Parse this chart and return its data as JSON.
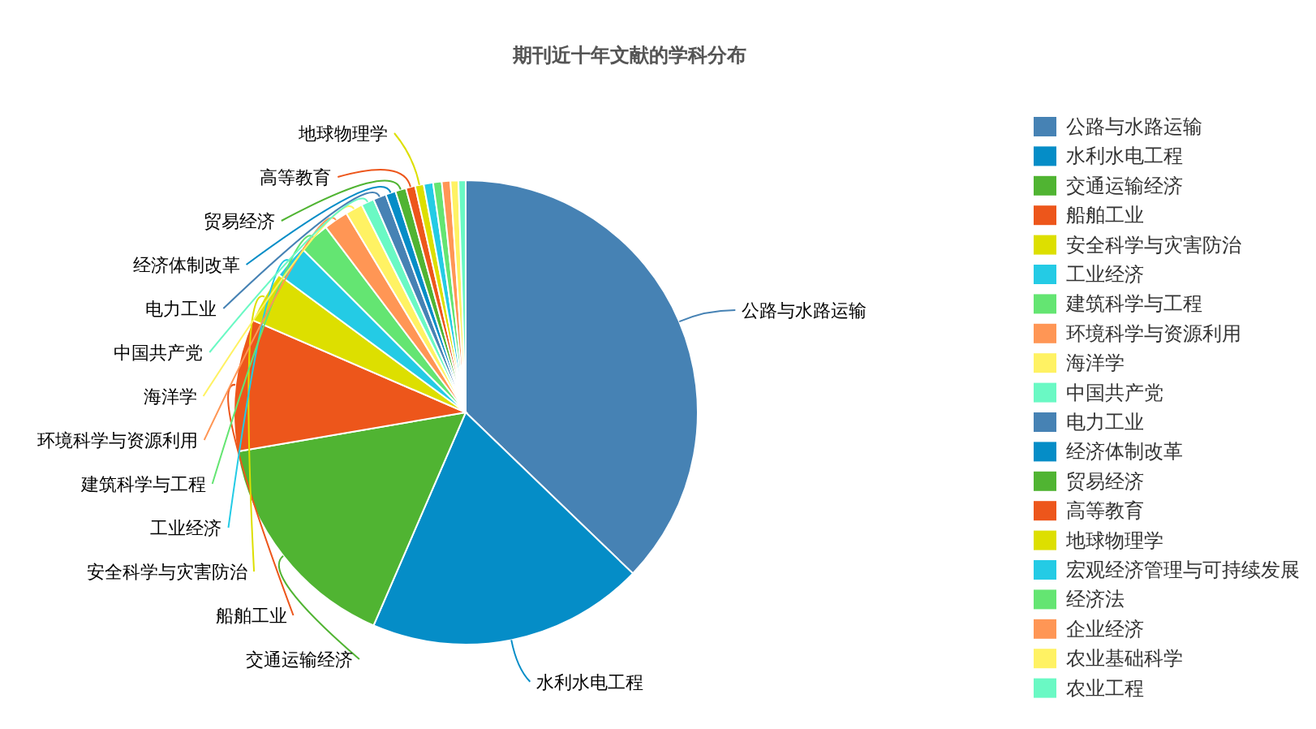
{
  "chart_data": {
    "type": "pie",
    "title": "期刊近十年文献的学科分布",
    "categories": [
      "公路与水路运输",
      "水利水电工程",
      "交通运输经济",
      "船舶工业",
      "安全科学与灾害防治",
      "工业经济",
      "建筑科学与工程",
      "环境科学与资源利用",
      "海洋学",
      "中国共产党",
      "电力工业",
      "经济体制改革",
      "贸易经济",
      "高等教育",
      "地球物理学",
      "宏观经济管理与可持续发展",
      "经济法",
      "企业经济",
      "农业基础科学",
      "农业工程"
    ],
    "values": [
      37.2,
      19.3,
      15.8,
      9.2,
      3.6,
      2.4,
      2.2,
      1.7,
      1.2,
      0.9,
      0.9,
      0.7,
      0.75,
      0.65,
      0.6,
      0.65,
      0.6,
      0.6,
      0.55,
      0.5
    ],
    "colors": [
      "#4682b4",
      "#058dc7",
      "#50b432",
      "#ed561b",
      "#dddf00",
      "#24cbe5",
      "#64e572",
      "#ff9655",
      "#fff263",
      "#6af9c4",
      "#4682b4",
      "#058dc7",
      "#50b432",
      "#ed561b",
      "#dddf00",
      "#24cbe5",
      "#64e572",
      "#ff9655",
      "#fff263",
      "#6af9c4"
    ],
    "legend": "right"
  }
}
